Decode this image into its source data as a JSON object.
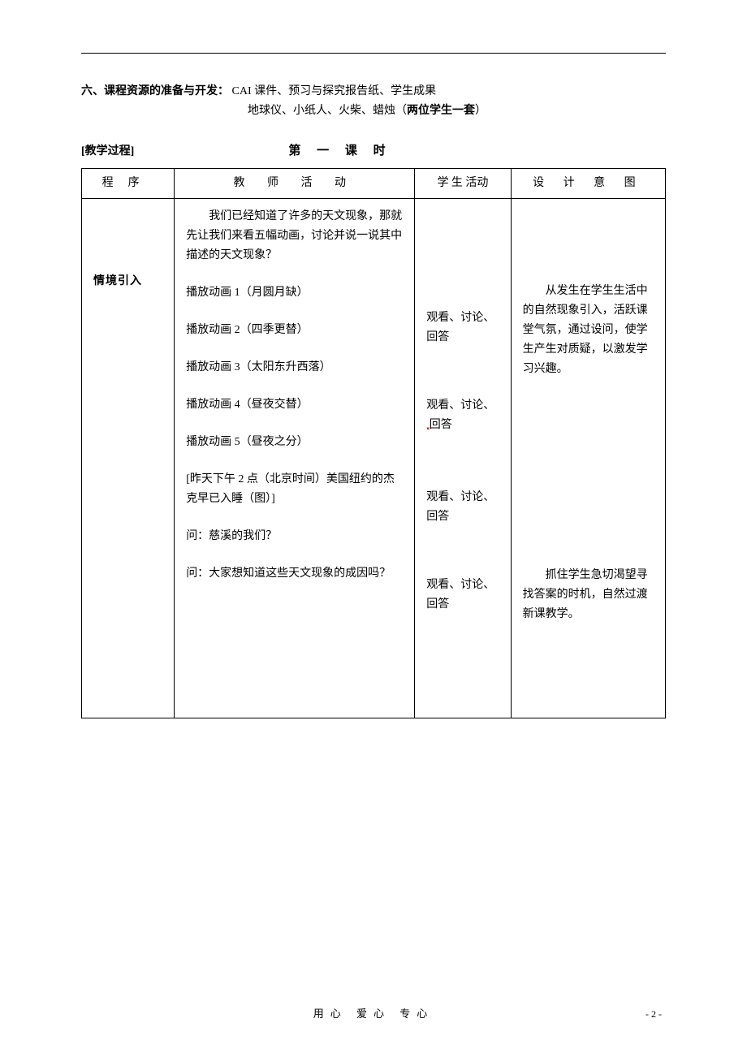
{
  "section_six": {
    "label": "六、课程资源的准备与开发：",
    "line1_rest": " CAI 课件、预习与探究报告纸、学生成果",
    "line2_part1": "地球仪、小纸人、火柴、蜡烛（",
    "line2_bold": "两位学生一套",
    "line2_part2": "）"
  },
  "process": {
    "label": "[教学过程]",
    "lesson_title": "第 一 课 时"
  },
  "table": {
    "headers": {
      "procedure": "程序",
      "teacher": "教 师 活 动",
      "student": "学 生 活动",
      "design": "设 计 意 图"
    },
    "procedure_value": "情境引入",
    "teacher": {
      "intro": "我们已经知道了许多的天文现象，那就先让我们来看五幅动画，讨论并说一说其中描述的天文现象？",
      "anim1": "播放动画 1（月圆月缺）",
      "anim2": "播放动画 2（四季更替）",
      "anim3": "播放动画 3（太阳东升西落）",
      "anim4": "播放动画 4（昼夜交替）",
      "anim5": "播放动画 5（昼夜之分）",
      "scenario": "[昨天下午 2 点（北京时间）美国纽约的杰克早已入睡（图）]",
      "q1": "问：慈溪的我们？",
      "q2": "问：大家想知道这些天文现象的成因吗？"
    },
    "student": {
      "block1": "观看、讨论、回答",
      "block2a": "观看、讨论、",
      "block2b": "回答",
      "block3": "观看、讨论、回答",
      "block4": "观看、讨论、回答"
    },
    "design": {
      "block1": "从发生在学生生活中的自然现象引入，活跃课堂气氛，通过设问，使学生产生对质疑，以激发学习兴趣。",
      "block2": "抓住学生急切渴望寻找答案的时机，自然过渡新课教学。"
    }
  },
  "footer": {
    "text": "用心 爱心 专心",
    "page": "- 2 -"
  },
  "colors": {
    "text": "#000000",
    "background": "#ffffff",
    "border": "#000000",
    "accent_red": "#ff0000"
  }
}
